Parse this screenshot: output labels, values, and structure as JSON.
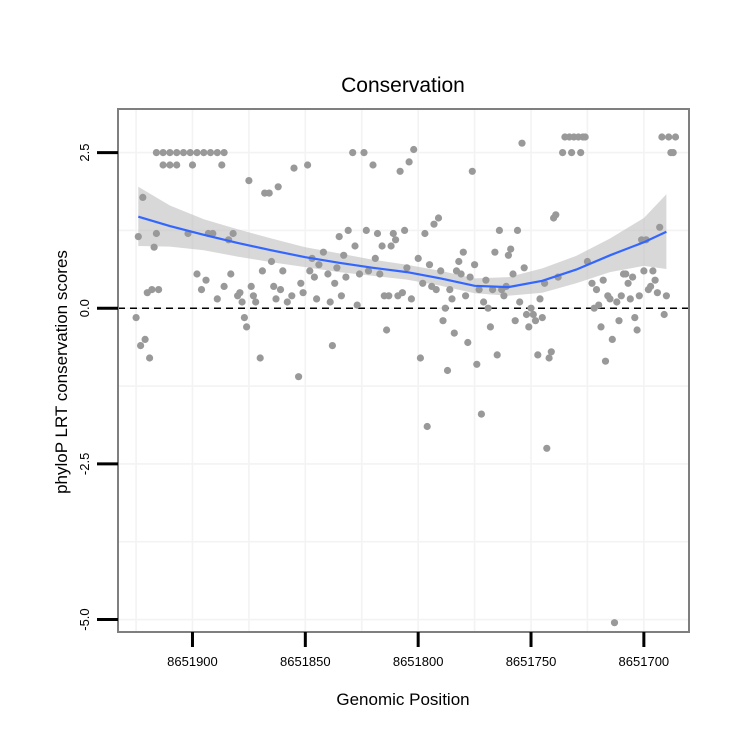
{
  "chart_data": {
    "type": "scatter",
    "title": "Conservation",
    "xlabel": "Genomic Position",
    "ylabel": "phyloP LRT conservation scores",
    "x_reversed": true,
    "xlim": [
      8651933,
      8651680
    ],
    "ylim": [
      -5.2,
      3.2
    ],
    "x_ticks": [
      8651900,
      8651850,
      8651800,
      8651750,
      8651700
    ],
    "y_ticks": [
      2.5,
      0.0,
      -2.5,
      -5.0
    ],
    "y_tick_labels": [
      "2.5",
      "0.0",
      "-2.5",
      "-5.0"
    ],
    "reference_line": {
      "y": 0.0,
      "style": "dashed",
      "color": "#000000"
    },
    "grid": true,
    "point_color": "#999999",
    "smooth": {
      "color": "#3366ff",
      "band_color": "#bebebe",
      "x": [
        8651924,
        8651910,
        8651895,
        8651880,
        8651865,
        8651850,
        8651835,
        8651820,
        8651805,
        8651790,
        8651775,
        8651760,
        8651745,
        8651730,
        8651715,
        8651700,
        8651690
      ],
      "y": [
        1.47,
        1.32,
        1.18,
        1.05,
        0.93,
        0.82,
        0.73,
        0.65,
        0.58,
        0.48,
        0.36,
        0.34,
        0.44,
        0.62,
        0.85,
        1.06,
        1.23
      ],
      "lower": [
        1.0,
        0.99,
        0.93,
        0.83,
        0.74,
        0.66,
        0.58,
        0.52,
        0.46,
        0.36,
        0.24,
        0.2,
        0.25,
        0.4,
        0.58,
        0.68,
        0.63
      ],
      "upper": [
        1.95,
        1.65,
        1.43,
        1.27,
        1.12,
        0.98,
        0.88,
        0.78,
        0.7,
        0.6,
        0.48,
        0.5,
        0.64,
        0.84,
        1.12,
        1.45,
        1.83
      ]
    },
    "points": [
      [
        8651925,
        -0.15
      ],
      [
        8651924,
        1.15
      ],
      [
        8651922,
        1.78
      ],
      [
        8651923,
        -0.6
      ],
      [
        8651921,
        -0.5
      ],
      [
        8651919,
        -0.8
      ],
      [
        8651920,
        0.25
      ],
      [
        8651918,
        0.3
      ],
      [
        8651917,
        0.98
      ],
      [
        8651916,
        1.2
      ],
      [
        8651915,
        0.3
      ],
      [
        8651916,
        2.5
      ],
      [
        8651913,
        2.5
      ],
      [
        8651910,
        2.5
      ],
      [
        8651907,
        2.5
      ],
      [
        8651904,
        2.5
      ],
      [
        8651901,
        2.5
      ],
      [
        8651898,
        2.5
      ],
      [
        8651895,
        2.5
      ],
      [
        8651892,
        2.5
      ],
      [
        8651889,
        2.5
      ],
      [
        8651886,
        2.5
      ],
      [
        8651913,
        2.3
      ],
      [
        8651910,
        2.3
      ],
      [
        8651907,
        2.3
      ],
      [
        8651900,
        2.3
      ],
      [
        8651887,
        2.3
      ],
      [
        8651902,
        1.2
      ],
      [
        8651898,
        0.55
      ],
      [
        8651896,
        0.3
      ],
      [
        8651894,
        0.45
      ],
      [
        8651893,
        1.2
      ],
      [
        8651891,
        1.2
      ],
      [
        8651889,
        0.15
      ],
      [
        8651886,
        0.35
      ],
      [
        8651884,
        1.1
      ],
      [
        8651883,
        0.55
      ],
      [
        8651882,
        1.2
      ],
      [
        8651880,
        0.2
      ],
      [
        8651879,
        0.25
      ],
      [
        8651878,
        0.1
      ],
      [
        8651877,
        -0.15
      ],
      [
        8651876,
        -0.3
      ],
      [
        8651875,
        2.05
      ],
      [
        8651874,
        0.35
      ],
      [
        8651873,
        0.2
      ],
      [
        8651872,
        0.1
      ],
      [
        8651870,
        -0.8
      ],
      [
        8651869,
        0.6
      ],
      [
        8651868,
        1.85
      ],
      [
        8651866,
        1.85
      ],
      [
        8651865,
        0.75
      ],
      [
        8651864,
        0.35
      ],
      [
        8651863,
        0.15
      ],
      [
        8651862,
        1.95
      ],
      [
        8651861,
        0.3
      ],
      [
        8651860,
        0.6
      ],
      [
        8651858,
        0.1
      ],
      [
        8651856,
        0.2
      ],
      [
        8651855,
        2.25
      ],
      [
        8651853,
        -1.1
      ],
      [
        8651852,
        0.4
      ],
      [
        8651851,
        0.25
      ],
      [
        8651849,
        2.3
      ],
      [
        8651848,
        0.6
      ],
      [
        8651847,
        0.8
      ],
      [
        8651846,
        0.5
      ],
      [
        8651845,
        0.15
      ],
      [
        8651844,
        0.7
      ],
      [
        8651842,
        0.9
      ],
      [
        8651840,
        0.55
      ],
      [
        8651839,
        0.1
      ],
      [
        8651838,
        -0.6
      ],
      [
        8651837,
        0.4
      ],
      [
        8651836,
        0.65
      ],
      [
        8651835,
        1.15
      ],
      [
        8651834,
        0.2
      ],
      [
        8651833,
        0.85
      ],
      [
        8651832,
        0.5
      ],
      [
        8651831,
        1.25
      ],
      [
        8651829,
        2.5
      ],
      [
        8651828,
        1.0
      ],
      [
        8651827,
        0.05
      ],
      [
        8651826,
        0.55
      ],
      [
        8651824,
        2.5
      ],
      [
        8651823,
        1.25
      ],
      [
        8651822,
        0.6
      ],
      [
        8651820,
        2.3
      ],
      [
        8651819,
        0.8
      ],
      [
        8651818,
        1.2
      ],
      [
        8651817,
        0.55
      ],
      [
        8651816,
        1.0
      ],
      [
        8651815,
        0.2
      ],
      [
        8651814,
        -0.35
      ],
      [
        8651813,
        0.2
      ],
      [
        8651812,
        1.0
      ],
      [
        8651811,
        1.2
      ],
      [
        8651810,
        1.1
      ],
      [
        8651809,
        0.2
      ],
      [
        8651808,
        2.2
      ],
      [
        8651807,
        0.25
      ],
      [
        8651806,
        1.25
      ],
      [
        8651805,
        0.65
      ],
      [
        8651804,
        2.35
      ],
      [
        8651803,
        0.15
      ],
      [
        8651802,
        2.55
      ],
      [
        8651800,
        0.8
      ],
      [
        8651799,
        -0.8
      ],
      [
        8651798,
        0.4
      ],
      [
        8651797,
        1.2
      ],
      [
        8651796,
        -1.9
      ],
      [
        8651795,
        0.7
      ],
      [
        8651794,
        0.35
      ],
      [
        8651793,
        1.35
      ],
      [
        8651792,
        0.3
      ],
      [
        8651791,
        1.45
      ],
      [
        8651790,
        0.6
      ],
      [
        8651789,
        -0.2
      ],
      [
        8651788,
        0.0
      ],
      [
        8651787,
        -1.0
      ],
      [
        8651786,
        0.3
      ],
      [
        8651785,
        0.15
      ],
      [
        8651784,
        -0.4
      ],
      [
        8651783,
        0.6
      ],
      [
        8651782,
        0.75
      ],
      [
        8651781,
        0.55
      ],
      [
        8651780,
        0.9
      ],
      [
        8651779,
        0.2
      ],
      [
        8651778,
        -0.55
      ],
      [
        8651777,
        0.5
      ],
      [
        8651776,
        2.2
      ],
      [
        8651775,
        0.7
      ],
      [
        8651774,
        -0.9
      ],
      [
        8651773,
        0.3
      ],
      [
        8651772,
        -1.7
      ],
      [
        8651771,
        0.1
      ],
      [
        8651770,
        0.45
      ],
      [
        8651769,
        0.0
      ],
      [
        8651768,
        -0.3
      ],
      [
        8651767,
        0.3
      ],
      [
        8651766,
        0.9
      ],
      [
        8651765,
        -0.75
      ],
      [
        8651764,
        1.25
      ],
      [
        8651763,
        0.3
      ],
      [
        8651762,
        0.2
      ],
      [
        8651761,
        0.35
      ],
      [
        8651760,
        0.85
      ],
      [
        8651759,
        0.95
      ],
      [
        8651758,
        0.55
      ],
      [
        8651757,
        -0.2
      ],
      [
        8651756,
        1.25
      ],
      [
        8651755,
        0.1
      ],
      [
        8651754,
        2.65
      ],
      [
        8651753,
        0.65
      ],
      [
        8651752,
        -0.1
      ],
      [
        8651751,
        -0.3
      ],
      [
        8651750,
        0.0
      ],
      [
        8651749,
        -0.1
      ],
      [
        8651748,
        -0.2
      ],
      [
        8651747,
        -0.75
      ],
      [
        8651746,
        0.15
      ],
      [
        8651745,
        -0.15
      ],
      [
        8651744,
        0.4
      ],
      [
        8651743,
        -2.25
      ],
      [
        8651742,
        -0.8
      ],
      [
        8651741,
        -0.7
      ],
      [
        8651740,
        1.45
      ],
      [
        8651739,
        1.5
      ],
      [
        8651738,
        0.5
      ],
      [
        8651736,
        2.5
      ],
      [
        8651735,
        2.75
      ],
      [
        8651733,
        2.75
      ],
      [
        8651732,
        2.5
      ],
      [
        8651731,
        2.75
      ],
      [
        8651729,
        2.75
      ],
      [
        8651728,
        2.5
      ],
      [
        8651727,
        2.75
      ],
      [
        8651726,
        2.75
      ],
      [
        8651725,
        0.75
      ],
      [
        8651723,
        0.4
      ],
      [
        8651722,
        0.0
      ],
      [
        8651721,
        0.3
      ],
      [
        8651720,
        0.05
      ],
      [
        8651719,
        -0.3
      ],
      [
        8651718,
        0.45
      ],
      [
        8651717,
        -0.85
      ],
      [
        8651716,
        0.2
      ],
      [
        8651715,
        0.15
      ],
      [
        8651714,
        -0.5
      ],
      [
        8651713,
        -5.05
      ],
      [
        8651712,
        0.1
      ],
      [
        8651711,
        -0.2
      ],
      [
        8651710,
        0.2
      ],
      [
        8651709,
        0.55
      ],
      [
        8651708,
        0.55
      ],
      [
        8651707,
        0.4
      ],
      [
        8651706,
        0.15
      ],
      [
        8651705,
        0.5
      ],
      [
        8651704,
        -0.15
      ],
      [
        8651703,
        -0.35
      ],
      [
        8651702,
        0.2
      ],
      [
        8651701,
        1.1
      ],
      [
        8651700,
        0.6
      ],
      [
        8651699,
        1.1
      ],
      [
        8651698,
        0.3
      ],
      [
        8651697,
        0.35
      ],
      [
        8651696,
        0.6
      ],
      [
        8651695,
        0.45
      ],
      [
        8651694,
        0.25
      ],
      [
        8651693,
        1.3
      ],
      [
        8651692,
        2.75
      ],
      [
        8651690,
        0.2
      ],
      [
        8651689,
        2.75
      ],
      [
        8651688,
        2.5
      ],
      [
        8651687,
        2.5
      ],
      [
        8651686,
        2.75
      ],
      [
        8651691,
        -0.1
      ]
    ]
  }
}
